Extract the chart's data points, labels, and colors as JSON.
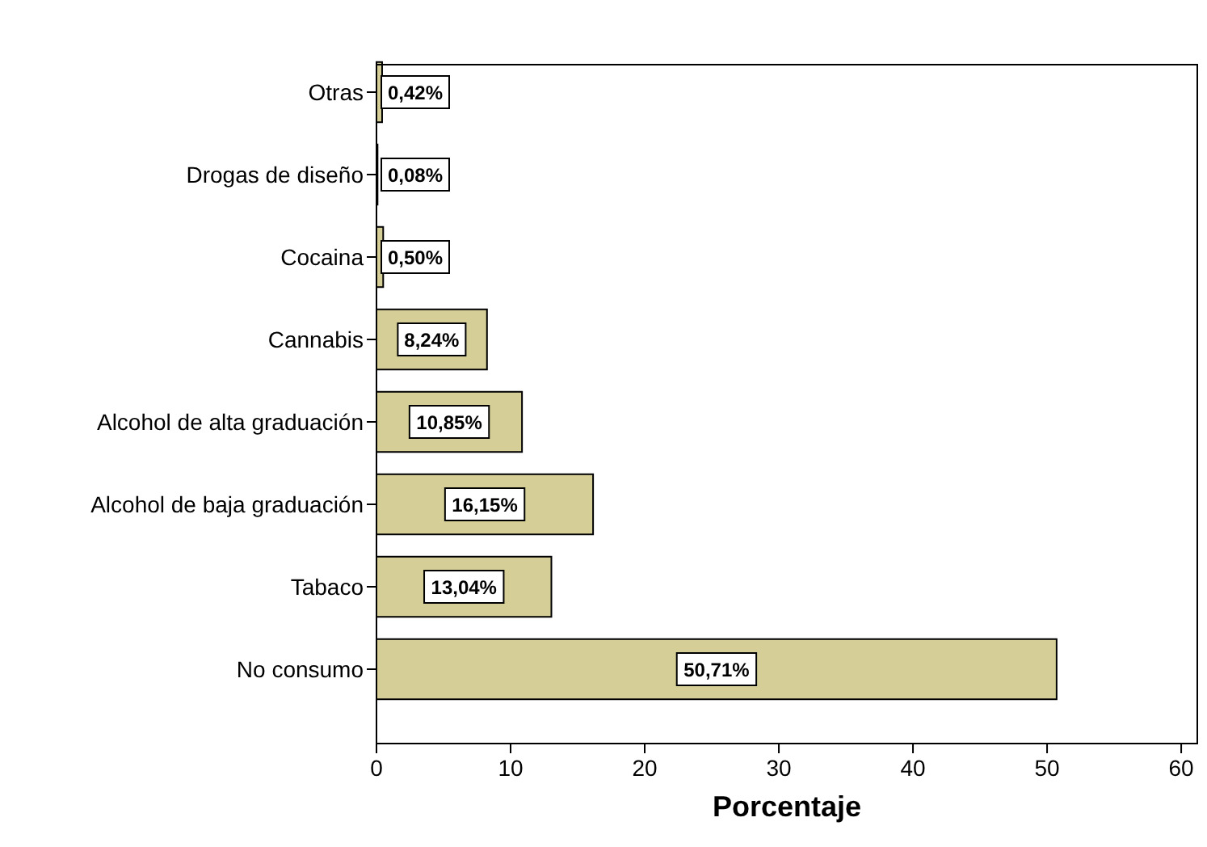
{
  "chart_data": {
    "type": "bar",
    "orientation": "horizontal",
    "xlabel": "Porcentaje",
    "categories": [
      "Otras",
      "Drogas de diseño",
      "Cocaina",
      "Cannabis",
      "Alcohol de alta graduación",
      "Alcohol de baja graduación",
      "Tabaco",
      "No consumo"
    ],
    "values": [
      0.42,
      0.08,
      0.5,
      8.24,
      10.85,
      16.15,
      13.04,
      50.71
    ],
    "value_labels": [
      "0,42%",
      "0,08%",
      "0,50%",
      "8,24%",
      "10,85%",
      "16,15%",
      "13,04%",
      "50,71%"
    ],
    "color": "#d5cf97",
    "xlim": [
      0,
      61.2
    ],
    "xticks": [
      0,
      10,
      20,
      30,
      40,
      50,
      60
    ]
  }
}
